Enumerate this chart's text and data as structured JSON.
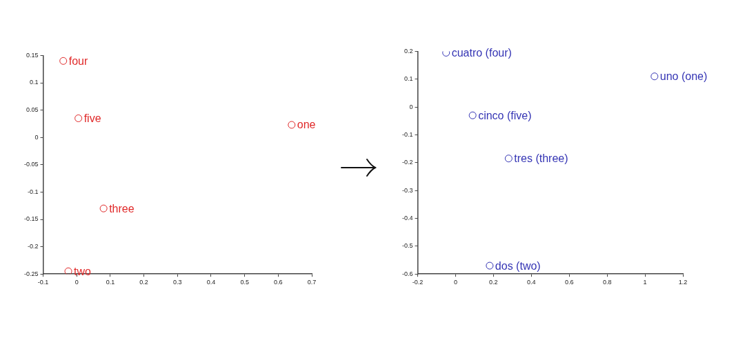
{
  "chart_data": [
    {
      "type": "scatter",
      "xlim": [
        -0.1,
        0.7
      ],
      "ylim": [
        -0.25,
        0.15
      ],
      "xticks": [
        -0.1,
        0,
        0.1,
        0.2,
        0.3,
        0.4,
        0.5,
        0.6,
        0.7
      ],
      "yticks": [
        -0.25,
        -0.2,
        -0.15,
        -0.1,
        -0.05,
        0,
        0.05,
        0.1,
        0.15
      ],
      "grid": false,
      "legend": false,
      "marker": "circle",
      "series": [
        {
          "color": "#e02828",
          "x": [
            0.64,
            -0.025,
            0.08,
            -0.04,
            0.005
          ],
          "values": [
            0.023,
            -0.245,
            -0.13,
            0.14,
            0.035
          ]
        }
      ],
      "annotations": [
        {
          "text": "one",
          "x": 0.64,
          "y": 0.023
        },
        {
          "text": "two",
          "x": -0.025,
          "y": -0.245
        },
        {
          "text": "three",
          "x": 0.08,
          "y": -0.13
        },
        {
          "text": "four",
          "x": -0.04,
          "y": 0.14
        },
        {
          "text": "five",
          "x": 0.005,
          "y": 0.035
        }
      ]
    },
    {
      "type": "scatter",
      "xlim": [
        -0.2,
        1.2
      ],
      "ylim": [
        -0.6,
        0.2
      ],
      "xticks": [
        -0.2,
        0,
        0.2,
        0.4,
        0.6,
        0.8,
        1,
        1.2
      ],
      "yticks": [
        -0.6,
        -0.5,
        -0.4,
        -0.3,
        -0.2,
        -0.1,
        0,
        0.1,
        0.2
      ],
      "grid": false,
      "legend": false,
      "marker": "circle",
      "series": [
        {
          "color": "#3434b4",
          "x": [
            1.05,
            0.18,
            0.28,
            -0.05,
            0.09
          ],
          "values": [
            0.11,
            -0.57,
            -0.185,
            0.195,
            -0.03
          ]
        }
      ],
      "annotations": [
        {
          "text": "uno (one)",
          "x": 1.05,
          "y": 0.11
        },
        {
          "text": "dos (two)",
          "x": 0.18,
          "y": -0.57
        },
        {
          "text": "tres (three)",
          "x": 0.28,
          "y": -0.185
        },
        {
          "text": "cuatro (four)",
          "x": -0.05,
          "y": 0.195
        },
        {
          "text": "cinco (five)",
          "x": 0.09,
          "y": -0.03
        }
      ]
    }
  ]
}
